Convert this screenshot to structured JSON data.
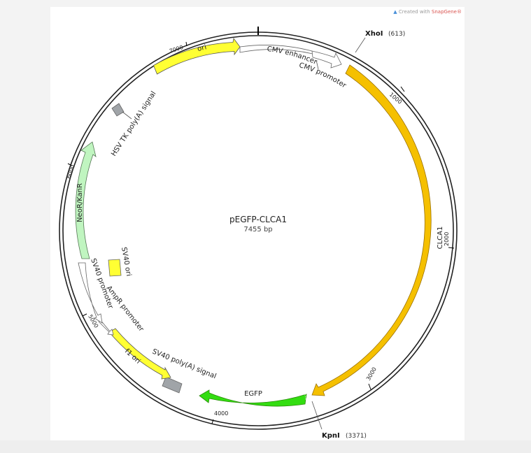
{
  "plasmid": {
    "name": "pEGFP-CLCA1",
    "size_label": "7455 bp",
    "length": 7455
  },
  "watermark": {
    "prefix": "Created with",
    "brand": "SnapGene®"
  },
  "colors": {
    "ori": "#ffff33",
    "cmv": "#ffffff",
    "clca1": "#f5c000",
    "egfp": "#33dd11",
    "f1": "#ffff33",
    "ampr_promoter": "#ffffff",
    "sv40_promoter": "#ffffff",
    "neo": "#c0f5c0",
    "terminator": "#a0a4a8",
    "sv40_ori": "#ffff33"
  },
  "ticks": [
    {
      "pos": 1000,
      "label": "1000"
    },
    {
      "pos": 2000,
      "label": "2000"
    },
    {
      "pos": 3000,
      "label": "3000"
    },
    {
      "pos": 4000,
      "label": "4000"
    },
    {
      "pos": 5000,
      "label": "5000"
    },
    {
      "pos": 6000,
      "label": "6000"
    },
    {
      "pos": 7000,
      "label": "7000"
    }
  ],
  "sites": [
    {
      "name": "XhoI",
      "pos_label": "(613)",
      "pos": 613
    },
    {
      "name": "KpnI",
      "pos_label": "(3371)",
      "pos": 3371
    }
  ],
  "features": [
    {
      "label": "CMV enhancer"
    },
    {
      "label": "CMV promoter"
    },
    {
      "label": "CLCA1"
    },
    {
      "label": "EGFP"
    },
    {
      "label": "SV40 poly(A) signal"
    },
    {
      "label": "f1 ori"
    },
    {
      "label": "AmpR promoter"
    },
    {
      "label": "SV40 promoter"
    },
    {
      "label": "SV40 ori"
    },
    {
      "label": "NeoR/KanR"
    },
    {
      "label": "HSV TK poly(A) signal"
    },
    {
      "label": "ori"
    }
  ]
}
